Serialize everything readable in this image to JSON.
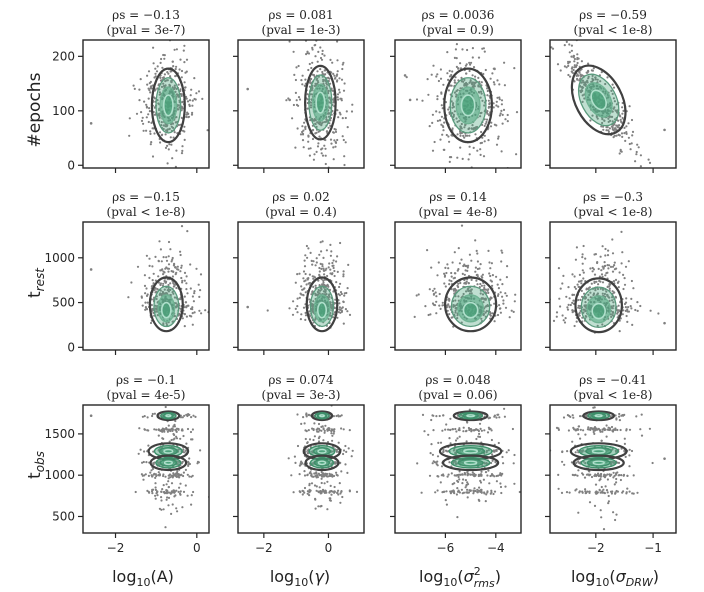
{
  "figure": {
    "row_labels": [
      "#epochs",
      "t_rest",
      "t_obs"
    ],
    "col_labels": [
      "log10(A)",
      "log10(γ)",
      "log10(σ²_rms)",
      "log10(σ_DRW)"
    ],
    "colors": {
      "scatter": "#808080",
      "kde_outer": "#404040",
      "kde_fill": "#4aa37b",
      "kde_inner": "#b0e0cc",
      "axes": "#262626"
    }
  },
  "chart_data": [
    {
      "type": "scatter",
      "row": 0,
      "col": 0,
      "rho": "ρs = −0.13",
      "pval": "(pval = 3e-7)",
      "x_center": -0.7,
      "x_spread": 0.3,
      "y_center": 110,
      "y_spread": 45,
      "xlim": [
        -2.8,
        0.3
      ],
      "ylim": [
        -5,
        230
      ],
      "yticks": [
        0,
        100,
        200
      ],
      "xticks": [
        -2,
        0
      ],
      "outliers": [
        [
          -2.6,
          77
        ]
      ],
      "mode": "blob"
    },
    {
      "type": "scatter",
      "row": 0,
      "col": 1,
      "rho": "ρs = 0.081",
      "pval": "(pval = 1e-3)",
      "x_center": -0.25,
      "x_spread": 0.35,
      "y_center": 115,
      "y_spread": 45,
      "xlim": [
        -2.8,
        1.1
      ],
      "ylim": [
        -5,
        230
      ],
      "yticks": [
        0,
        100,
        200
      ],
      "xticks": [
        -2,
        0
      ],
      "outliers": [
        [
          -2.5,
          140
        ],
        [
          -1.2,
          120
        ]
      ],
      "mode": "blob"
    },
    {
      "type": "scatter",
      "row": 0,
      "col": 2,
      "rho": "ρs = 0.0036",
      "pval": "(pval = 0.9)",
      "x_center": -5.1,
      "x_spread": 0.7,
      "y_center": 110,
      "y_spread": 45,
      "xlim": [
        -8.0,
        -3.0
      ],
      "ylim": [
        -5,
        230
      ],
      "yticks": [
        0,
        100,
        200
      ],
      "xticks": [
        -6,
        -4
      ],
      "outliers": [
        [
          -7.6,
          165
        ],
        [
          -7.4,
          120
        ]
      ],
      "mode": "blob"
    },
    {
      "type": "scatter",
      "row": 0,
      "col": 3,
      "rho": "ρs = −0.59",
      "pval": "(pval < 1e-8)",
      "x_center": -1.95,
      "x_spread": 0.3,
      "y_center": 120,
      "y_spread": 45,
      "xlim": [
        -2.8,
        -0.6
      ],
      "ylim": [
        -5,
        230
      ],
      "yticks": [
        0,
        100,
        200
      ],
      "xticks": [
        -2,
        -1
      ],
      "outliers": [
        [
          -0.8,
          65
        ]
      ],
      "mode": "tilted"
    },
    {
      "type": "scatter",
      "row": 1,
      "col": 0,
      "rho": "ρs = −0.15",
      "pval": "(pval < 1e-8)",
      "x_center": -0.75,
      "x_spread": 0.3,
      "y_center": 480,
      "y_spread": 200,
      "xlim": [
        -2.8,
        0.3
      ],
      "ylim": [
        -30,
        1400
      ],
      "yticks": [
        0,
        500,
        1000
      ],
      "xticks": [
        -2,
        0
      ],
      "outliers": [
        [
          -2.6,
          870
        ]
      ],
      "mode": "drop"
    },
    {
      "type": "scatter",
      "row": 1,
      "col": 1,
      "rho": "ρs = 0.02",
      "pval": "(pval = 0.4)",
      "x_center": -0.2,
      "x_spread": 0.35,
      "y_center": 480,
      "y_spread": 200,
      "xlim": [
        -2.8,
        1.1
      ],
      "ylim": [
        -30,
        1400
      ],
      "yticks": [
        0,
        500,
        1000
      ],
      "xticks": [
        -2,
        0
      ],
      "outliers": [
        [
          -2.5,
          450
        ]
      ],
      "mode": "drop"
    },
    {
      "type": "scatter",
      "row": 1,
      "col": 2,
      "rho": "ρs = 0.14",
      "pval": "(pval = 4e-8)",
      "x_center": -5.0,
      "x_spread": 0.75,
      "y_center": 480,
      "y_spread": 200,
      "xlim": [
        -8.0,
        -3.0
      ],
      "ylim": [
        -30,
        1400
      ],
      "yticks": [
        0,
        500,
        1000
      ],
      "xticks": [
        -6,
        -4
      ],
      "outliers": [],
      "mode": "drop"
    },
    {
      "type": "scatter",
      "row": 1,
      "col": 3,
      "rho": "ρs = −0.3",
      "pval": "(pval < 1e-8)",
      "x_center": -1.95,
      "x_spread": 0.3,
      "y_center": 470,
      "y_spread": 200,
      "xlim": [
        -2.8,
        -0.6
      ],
      "ylim": [
        -30,
        1400
      ],
      "yticks": [
        0,
        500,
        1000
      ],
      "xticks": [
        -2,
        -1
      ],
      "outliers": [
        [
          -0.8,
          270
        ]
      ],
      "mode": "drop"
    },
    {
      "type": "scatter",
      "row": 2,
      "col": 0,
      "rho": "ρs = −0.1",
      "pval": "(pval = 4e-5)",
      "x_center": -0.7,
      "x_spread": 0.3,
      "y_center": 1150,
      "y_spread": 300,
      "xlim": [
        -2.8,
        0.3
      ],
      "ylim": [
        300,
        1850
      ],
      "yticks": [
        500,
        1000,
        1500
      ],
      "xticks": [
        -2,
        0
      ],
      "outliers": [
        [
          -2.6,
          1720
        ]
      ],
      "mode": "bands"
    },
    {
      "type": "scatter",
      "row": 2,
      "col": 1,
      "rho": "ρs = 0.074",
      "pval": "(pval = 3e-3)",
      "x_center": -0.2,
      "x_spread": 0.35,
      "y_center": 1150,
      "y_spread": 300,
      "xlim": [
        -2.8,
        1.1
      ],
      "ylim": [
        300,
        1850
      ],
      "yticks": [
        500,
        1000,
        1500
      ],
      "xticks": [
        -2,
        0
      ],
      "outliers": [],
      "mode": "bands"
    },
    {
      "type": "scatter",
      "row": 2,
      "col": 2,
      "rho": "ρs = 0.048",
      "pval": "(pval = 0.06)",
      "x_center": -5.0,
      "x_spread": 0.75,
      "y_center": 1150,
      "y_spread": 300,
      "xlim": [
        -8.0,
        -3.0
      ],
      "ylim": [
        300,
        1850
      ],
      "yticks": [
        500,
        1000,
        1500
      ],
      "xticks": [
        -6,
        -4
      ],
      "outliers": [],
      "mode": "bands"
    },
    {
      "type": "scatter",
      "row": 2,
      "col": 3,
      "rho": "ρs = −0.41",
      "pval": "(pval < 1e-8)",
      "x_center": -1.95,
      "x_spread": 0.3,
      "y_center": 1150,
      "y_spread": 300,
      "xlim": [
        -2.8,
        -0.6
      ],
      "ylim": [
        300,
        1850
      ],
      "yticks": [
        500,
        1000,
        1500
      ],
      "xticks": [
        -2,
        -1
      ],
      "outliers": [
        [
          -0.8,
          1200
        ]
      ],
      "mode": "bands"
    }
  ]
}
